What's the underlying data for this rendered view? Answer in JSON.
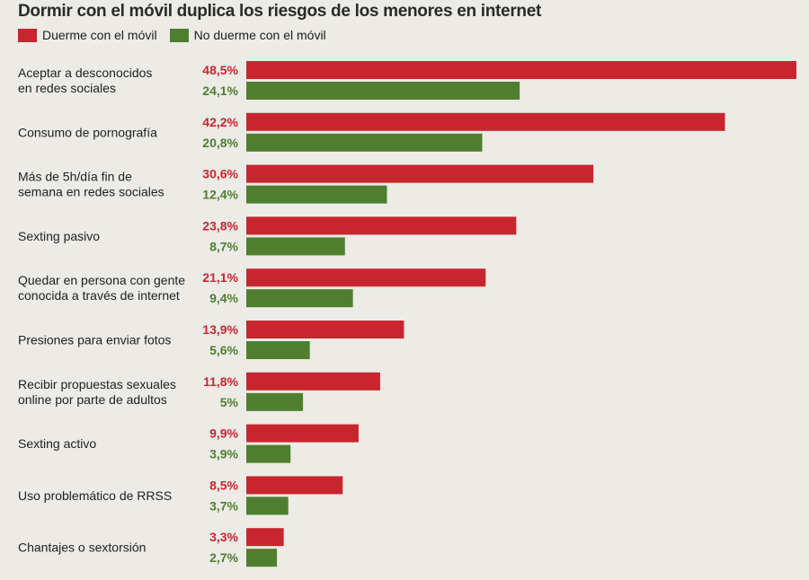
{
  "colors": {
    "red": "#c8262f",
    "green": "#4f7f2e",
    "background": "#ecebe6"
  },
  "chart_data": {
    "type": "bar",
    "orientation": "horizontal",
    "title": "Dormir con el móvil duplica los riesgos de los menores en internet",
    "legend": [
      "Duerme con el móvil",
      "No duerme con el móvil"
    ],
    "legend_position": "top-left",
    "grid": false,
    "categories": [
      [
        "Aceptar a desconocidos",
        "en redes sociales"
      ],
      [
        "Consumo de pornografía"
      ],
      [
        "Más de 5h/día fin de",
        "semana en redes sociales"
      ],
      [
        "Sexting pasivo"
      ],
      [
        "Quedar en persona con gente",
        "conocida a través de internet"
      ],
      [
        "Presiones para enviar fotos"
      ],
      [
        "Recibir propuestas sexuales",
        "online por parte de adultos"
      ],
      [
        "Sexting activo"
      ],
      [
        "Uso problemático de RRSS"
      ],
      [
        "Chantajes o sextorsión"
      ]
    ],
    "series": [
      {
        "name": "Duerme con el móvil",
        "values": [
          48.5,
          42.2,
          30.6,
          23.8,
          21.1,
          13.9,
          11.8,
          9.9,
          8.5,
          3.3
        ],
        "labels": [
          "48,5%",
          "42,2%",
          "30,6%",
          "23,8%",
          "21,1%",
          "13,9%",
          "11,8%",
          "9,9%",
          "8,5%",
          "3,3%"
        ]
      },
      {
        "name": "No duerme con el móvil",
        "values": [
          24.1,
          20.8,
          12.4,
          8.7,
          9.4,
          5.6,
          5.0,
          3.9,
          3.7,
          2.7
        ],
        "labels": [
          "24,1%",
          "20,8%",
          "12,4%",
          "8,7%",
          "9,4%",
          "5,6%",
          "5%",
          "3,9%",
          "3,7%",
          "2,7%"
        ]
      }
    ],
    "xlim": [
      0,
      48.5
    ]
  }
}
